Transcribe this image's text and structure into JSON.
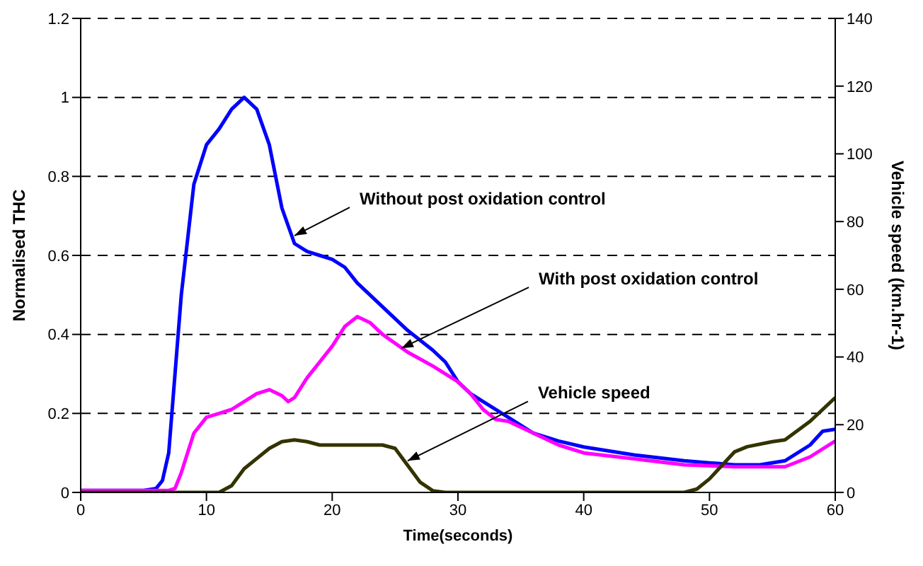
{
  "chart_data": {
    "type": "line",
    "xlabel": "Time(seconds)",
    "ylabel": "Normalised THC",
    "y2label": "Vehicle speed (km.hr-1)",
    "xlim": [
      0,
      60
    ],
    "xticks": [
      0,
      10,
      20,
      30,
      40,
      50,
      60
    ],
    "ylim": [
      0,
      1.2
    ],
    "yticks": [
      0,
      0.2,
      0.4,
      0.6,
      0.8,
      1,
      1.2
    ],
    "y2lim": [
      0,
      140
    ],
    "y2ticks": [
      0,
      20,
      40,
      60,
      80,
      100,
      120,
      140
    ],
    "grid": "y",
    "marker": "none",
    "line_style": "solid",
    "series": [
      {
        "color": "#0000ff",
        "x": [
          0,
          5,
          6,
          6.5,
          7,
          8,
          9,
          10,
          11,
          12,
          13,
          14,
          15,
          16,
          17,
          18,
          19,
          20,
          21,
          22,
          24,
          26,
          28,
          29,
          30,
          31,
          32,
          34,
          36,
          38,
          40,
          44,
          48,
          50,
          52,
          54,
          56,
          58,
          59,
          60
        ],
        "values": [
          0.005,
          0.005,
          0.01,
          0.03,
          0.1,
          0.5,
          0.78,
          0.88,
          0.92,
          0.97,
          1.0,
          0.97,
          0.88,
          0.72,
          0.63,
          0.61,
          0.6,
          0.59,
          0.57,
          0.53,
          0.47,
          0.41,
          0.36,
          0.33,
          0.28,
          0.25,
          0.23,
          0.19,
          0.15,
          0.13,
          0.115,
          0.095,
          0.08,
          0.075,
          0.07,
          0.07,
          0.08,
          0.12,
          0.155,
          0.16
        ]
      },
      {
        "color": "#ff00ff",
        "x": [
          0,
          7,
          7.5,
          8,
          9,
          10,
          11,
          12,
          13,
          14,
          15,
          16,
          16.5,
          17,
          18,
          19,
          20,
          21,
          22,
          23,
          24,
          26,
          28,
          30,
          31,
          32,
          33,
          34,
          36,
          38,
          40,
          44,
          48,
          52,
          56,
          58,
          60
        ],
        "values": [
          0.005,
          0.005,
          0.01,
          0.05,
          0.15,
          0.19,
          0.2,
          0.21,
          0.23,
          0.25,
          0.26,
          0.245,
          0.23,
          0.24,
          0.29,
          0.33,
          0.37,
          0.42,
          0.445,
          0.43,
          0.4,
          0.355,
          0.32,
          0.28,
          0.25,
          0.21,
          0.185,
          0.18,
          0.15,
          0.12,
          0.1,
          0.085,
          0.07,
          0.065,
          0.065,
          0.09,
          0.13
        ]
      },
      {
        "color": "#333300",
        "axis": "y2",
        "x": [
          0,
          11,
          12,
          13,
          14,
          15,
          16,
          17,
          18,
          19,
          20,
          22,
          24,
          25,
          26,
          27,
          28,
          29,
          48,
          49,
          50,
          51,
          52,
          53,
          55,
          56,
          58,
          60
        ],
        "values": [
          0,
          0,
          2,
          7,
          10,
          13,
          15,
          15.5,
          15,
          14,
          14,
          14,
          14,
          13,
          8,
          3,
          0.5,
          0,
          0,
          1,
          4,
          8,
          12,
          13.5,
          15,
          15.5,
          21,
          28
        ]
      }
    ],
    "annotations": [
      {
        "text": "Without post oxidation control",
        "x": 17,
        "y": 0.65
      },
      {
        "text": "With post oxidation control",
        "x": 25.5,
        "y": 0.365
      },
      {
        "text": "Vehicle speed",
        "x": 26,
        "y": 0.08
      }
    ]
  }
}
